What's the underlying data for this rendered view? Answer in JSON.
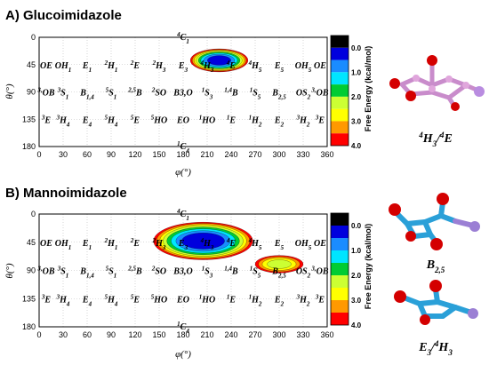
{
  "panels": [
    {
      "title": "A) Glucoimidazole",
      "molecule_label": [
        "4H3",
        "/",
        "4E"
      ],
      "molecule_color": "#d79ad6",
      "chart_data": {
        "type": "heatmap",
        "xlabel": "φ(°)",
        "ylabel": "θ(°)",
        "xlim": [
          0,
          360
        ],
        "ylim": [
          0,
          180
        ],
        "xticks": [
          0,
          30,
          60,
          90,
          120,
          150,
          180,
          210,
          240,
          270,
          300,
          330,
          360
        ],
        "yticks": [
          0,
          45,
          90,
          135,
          180
        ],
        "y_inverted": true,
        "minima": [
          {
            "phi": 225,
            "theta": 38,
            "rx": 36,
            "ry": 19,
            "depth": 0.3
          }
        ]
      }
    },
    {
      "title": "B) Mannoimidazole",
      "molecule_labels": [
        [
          "B",
          "2,5"
        ],
        [
          "E3",
          "/",
          "4H3"
        ]
      ],
      "molecule_color": "#2aa0d8",
      "chart_data": {
        "type": "heatmap",
        "xlabel": "φ(°)",
        "ylabel": "θ(°)",
        "xlim": [
          0,
          360
        ],
        "ylim": [
          0,
          180
        ],
        "xticks": [
          0,
          30,
          60,
          90,
          120,
          150,
          180,
          210,
          240,
          270,
          300,
          330,
          360
        ],
        "yticks": [
          0,
          45,
          90,
          135,
          180
        ],
        "y_inverted": true,
        "minima": [
          {
            "phi": 205,
            "theta": 43,
            "rx": 62,
            "ry": 30,
            "depth": 0.2
          },
          {
            "phi": 300,
            "theta": 80,
            "rx": 30,
            "ry": 14,
            "depth": 2.5
          }
        ]
      }
    }
  ],
  "colorbar": {
    "label": "Free Energy (kcal/mol)",
    "ticks": [
      "0.0",
      "1.0",
      "2.0",
      "3.0",
      "4.0"
    ],
    "levels": [
      0.0,
      0.5,
      1.0,
      1.5,
      2.0,
      2.5,
      3.0,
      3.5,
      4.0
    ],
    "colors": [
      "#000000",
      "#0000dd",
      "#1a8cff",
      "#00e5ff",
      "#00cc33",
      "#ccff33",
      "#ffff00",
      "#ff9900",
      "#ff0000"
    ]
  },
  "conformations": {
    "row0": [
      "4C1"
    ],
    "row45": [
      "OE",
      "OH1",
      "E1",
      "2H1",
      "2E",
      "2H3",
      "E3",
      "4H3",
      "4E",
      "4H5",
      "E5",
      "OH5",
      "OE"
    ],
    "row90": [
      "3,OB",
      "3S1",
      "B1,4",
      "5S1",
      "2,5B",
      "2SO",
      "B3,O",
      "1S3",
      "1,4B",
      "1S5",
      "B2,5",
      "OS2",
      "3,OB"
    ],
    "row135": [
      "3E",
      "3H4",
      "E4",
      "5H4",
      "5E",
      "5HO",
      "EO",
      "1HO",
      "1E",
      "1H2",
      "E2",
      "3H2",
      "3E"
    ],
    "row180": [
      "1C4"
    ]
  }
}
